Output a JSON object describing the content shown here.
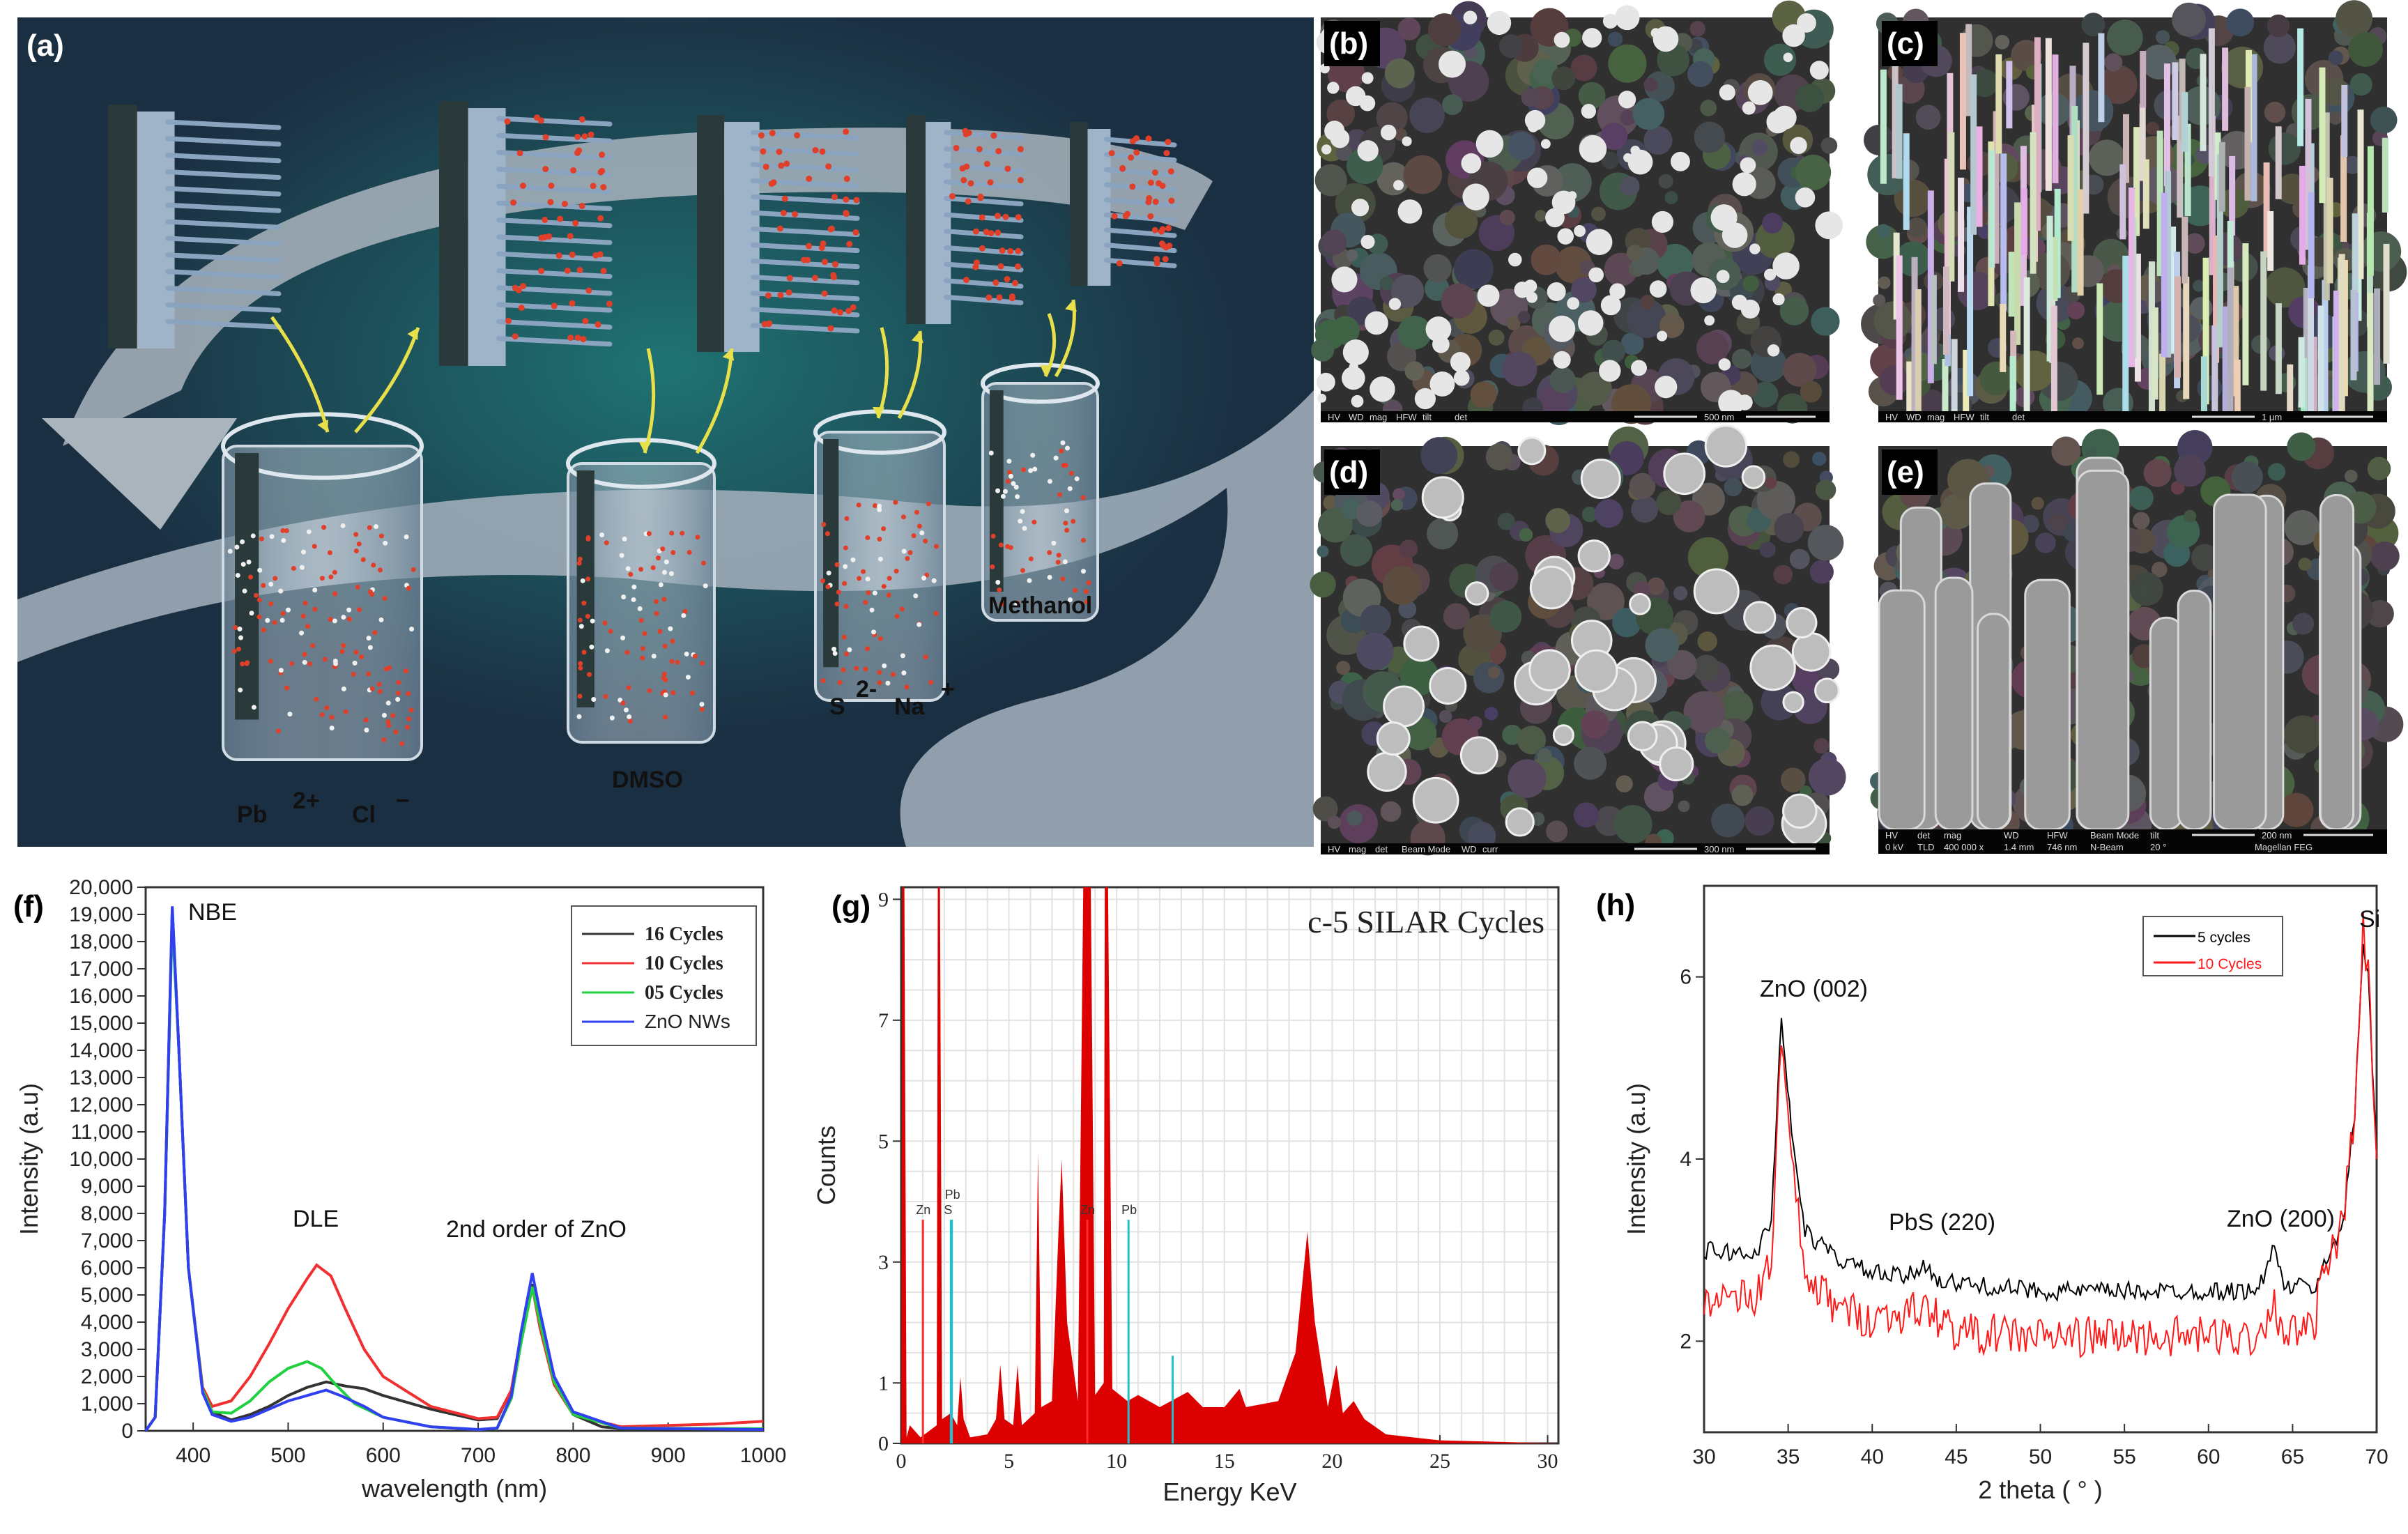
{
  "panel_labels": {
    "a": "(a)",
    "b": "(b)",
    "c": "(c)",
    "d": "(d)",
    "e": "(e)",
    "f": "(f)",
    "g": "(g)",
    "h": "(h)"
  },
  "schematic": {
    "colors": {
      "background_top": "#1b2f42",
      "glow": "#1f7373",
      "band": "#9aa8b4",
      "rods": "#8aa4c0",
      "dots": "#e0402a",
      "arrow": "#e8e04a"
    },
    "labels": {
      "pb": "Pb",
      "pb_charge": "2+",
      "cl": "Cl",
      "cl_charge": "−",
      "dmso": "DMSO",
      "s": "S",
      "s_charge": "2-",
      "na": "Na",
      "na_charge": "+",
      "methanol": "Methanol"
    }
  },
  "sem": {
    "b": {
      "bar_fields": [
        "HV",
        "WD",
        "mag",
        "HFW",
        "tilt",
        "det"
      ],
      "scale": "500 nm"
    },
    "c": {
      "bar_fields": [
        "HV",
        "WD",
        "mag",
        "HFW",
        "tilt",
        "det"
      ],
      "scale": "1 µm"
    },
    "d": {
      "bar_fields": [
        "HV",
        "mag",
        "det",
        "Beam Mode",
        "WD",
        "curr"
      ],
      "scale": "300 nm"
    },
    "e": {
      "bar_fields": [
        "HV",
        "det",
        "mag",
        "WD",
        "HFW",
        "Beam Mode",
        "tilt"
      ],
      "bar_values": [
        "0 kV",
        "TLD",
        "400 000 x",
        "1.4 mm",
        "746 nm",
        "N-Beam",
        "20 °"
      ],
      "scale": "200 nm",
      "instrument": "Magellan FEG"
    }
  },
  "chart_data": [
    {
      "panel": "f",
      "type": "line",
      "xlabel": "wavelength (nm)",
      "ylabel": "Intensity (a.u)",
      "xlim": [
        350,
        1000
      ],
      "ylim": [
        0,
        20000
      ],
      "x_ticks": [
        400,
        500,
        600,
        700,
        800,
        900,
        1000
      ],
      "x_tick_labels": [
        "400",
        "500",
        "600",
        "700",
        "800",
        "900",
        "1000"
      ],
      "y_ticks": [
        0,
        1000,
        2000,
        3000,
        4000,
        5000,
        6000,
        7000,
        8000,
        9000,
        10000,
        11000,
        12000,
        13000,
        14000,
        15000,
        16000,
        17000,
        18000,
        19000,
        20000
      ],
      "y_tick_labels": [
        "0",
        "1,000",
        "2,000",
        "3,000",
        "4,000",
        "5,000",
        "6,000",
        "7,000",
        "8,000",
        "9,000",
        "10,000",
        "11,000",
        "12,000",
        "13,000",
        "14,000",
        "15,000",
        "16,000",
        "17,000",
        "18,000",
        "19,000",
        "20,000"
      ],
      "grid": false,
      "legend": "top-right",
      "annotations": [
        "NBE",
        "DLE",
        "2nd order of ZnO"
      ],
      "series": [
        {
          "name": "16 Cycles",
          "color": "#333333",
          "points": [
            [
              350,
              0
            ],
            [
              360,
              500
            ],
            [
              370,
              8000
            ],
            [
              378,
              19200
            ],
            [
              385,
              14000
            ],
            [
              395,
              6000
            ],
            [
              410,
              1500
            ],
            [
              420,
              700
            ],
            [
              440,
              400
            ],
            [
              460,
              600
            ],
            [
              480,
              900
            ],
            [
              500,
              1300
            ],
            [
              520,
              1600
            ],
            [
              540,
              1800
            ],
            [
              560,
              1650
            ],
            [
              580,
              1550
            ],
            [
              600,
              1300
            ],
            [
              650,
              800
            ],
            [
              700,
              400
            ],
            [
              720,
              450
            ],
            [
              735,
              1500
            ],
            [
              745,
              3500
            ],
            [
              757,
              5400
            ],
            [
              765,
              4000
            ],
            [
              780,
              1800
            ],
            [
              800,
              600
            ],
            [
              830,
              150
            ],
            [
              860,
              50
            ],
            [
              1000,
              50
            ]
          ]
        },
        {
          "name": "10 Cycles",
          "color": "#f03030",
          "points": [
            [
              350,
              0
            ],
            [
              360,
              500
            ],
            [
              370,
              8000
            ],
            [
              378,
              19000
            ],
            [
              385,
              14000
            ],
            [
              395,
              6000
            ],
            [
              410,
              1600
            ],
            [
              420,
              900
            ],
            [
              440,
              1100
            ],
            [
              460,
              2000
            ],
            [
              480,
              3200
            ],
            [
              500,
              4500
            ],
            [
              520,
              5600
            ],
            [
              530,
              6100
            ],
            [
              545,
              5700
            ],
            [
              560,
              4500
            ],
            [
              580,
              3000
            ],
            [
              600,
              2000
            ],
            [
              650,
              900
            ],
            [
              700,
              450
            ],
            [
              720,
              500
            ],
            [
              735,
              1500
            ],
            [
              745,
              3500
            ],
            [
              757,
              5300
            ],
            [
              765,
              3800
            ],
            [
              780,
              1700
            ],
            [
              800,
              600
            ],
            [
              850,
              150
            ],
            [
              900,
              200
            ],
            [
              950,
              250
            ],
            [
              1000,
              350
            ]
          ]
        },
        {
          "name": "05 Cycles",
          "color": "#20d040",
          "points": [
            [
              350,
              0
            ],
            [
              360,
              500
            ],
            [
              370,
              8000
            ],
            [
              378,
              18800
            ],
            [
              385,
              14000
            ],
            [
              395,
              6000
            ],
            [
              410,
              1500
            ],
            [
              420,
              700
            ],
            [
              440,
              650
            ],
            [
              460,
              1100
            ],
            [
              480,
              1800
            ],
            [
              500,
              2300
            ],
            [
              520,
              2550
            ],
            [
              535,
              2300
            ],
            [
              550,
              1700
            ],
            [
              570,
              1000
            ],
            [
              600,
              500
            ],
            [
              650,
              150
            ],
            [
              700,
              50
            ],
            [
              720,
              100
            ],
            [
              735,
              1200
            ],
            [
              745,
              3200
            ],
            [
              757,
              5300
            ],
            [
              765,
              4000
            ],
            [
              780,
              1800
            ],
            [
              800,
              600
            ],
            [
              850,
              100
            ],
            [
              1000,
              80
            ]
          ]
        },
        {
          "name": "ZnO NWs",
          "color": "#3040f0",
          "points": [
            [
              350,
              0
            ],
            [
              360,
              500
            ],
            [
              370,
              8000
            ],
            [
              378,
              19300
            ],
            [
              385,
              14000
            ],
            [
              395,
              6000
            ],
            [
              410,
              1400
            ],
            [
              420,
              600
            ],
            [
              440,
              350
            ],
            [
              460,
              500
            ],
            [
              480,
              800
            ],
            [
              500,
              1100
            ],
            [
              520,
              1300
            ],
            [
              540,
              1500
            ],
            [
              555,
              1300
            ],
            [
              580,
              900
            ],
            [
              600,
              500
            ],
            [
              650,
              150
            ],
            [
              700,
              50
            ],
            [
              720,
              100
            ],
            [
              735,
              1300
            ],
            [
              745,
              3600
            ],
            [
              757,
              5800
            ],
            [
              765,
              4400
            ],
            [
              780,
              2000
            ],
            [
              800,
              700
            ],
            [
              850,
              100
            ],
            [
              1000,
              50
            ]
          ]
        }
      ]
    },
    {
      "panel": "g",
      "type": "area",
      "title": "c-5 SILAR Cycles",
      "xlabel": "Energy KeV",
      "ylabel": "Counts",
      "xlim": [
        0,
        30.5
      ],
      "ylim": [
        0,
        9.2
      ],
      "x_ticks": [
        0,
        5,
        10,
        15,
        20,
        25,
        30
      ],
      "x_tick_labels": [
        "0",
        "5",
        "10",
        "15",
        "20",
        "25",
        "30"
      ],
      "y_ticks": [
        0,
        1,
        3,
        5,
        7,
        9
      ],
      "y_tick_labels": [
        "0",
        "1",
        "3",
        "5",
        "7",
        "9"
      ],
      "grid": true,
      "fill_color": "#dd0000",
      "spectrum": [
        [
          0,
          0
        ],
        [
          0.05,
          9.2
        ],
        [
          0.15,
          9.2
        ],
        [
          0.25,
          0.1
        ],
        [
          0.4,
          0.3
        ],
        [
          0.9,
          0.1
        ],
        [
          1.65,
          0.3
        ],
        [
          1.7,
          9.2
        ],
        [
          1.8,
          9.2
        ],
        [
          1.9,
          0.4
        ],
        [
          2.3,
          0.5
        ],
        [
          2.6,
          0.3
        ],
        [
          2.75,
          1.1
        ],
        [
          2.9,
          0.4
        ],
        [
          3.2,
          0.1
        ],
        [
          4.0,
          0.15
        ],
        [
          4.4,
          0.4
        ],
        [
          4.6,
          1.3
        ],
        [
          4.8,
          0.4
        ],
        [
          5.2,
          0.3
        ],
        [
          5.4,
          1.3
        ],
        [
          5.6,
          0.3
        ],
        [
          6.2,
          0.5
        ],
        [
          6.35,
          4.8
        ],
        [
          6.5,
          0.6
        ],
        [
          7.0,
          0.7
        ],
        [
          7.3,
          3.5
        ],
        [
          7.45,
          4.7
        ],
        [
          7.7,
          2.0
        ],
        [
          8.2,
          0.7
        ],
        [
          8.45,
          9.2
        ],
        [
          8.8,
          9.2
        ],
        [
          9.0,
          0.8
        ],
        [
          9.4,
          1.0
        ],
        [
          9.45,
          9.2
        ],
        [
          9.6,
          9.2
        ],
        [
          9.8,
          0.9
        ],
        [
          10.5,
          0.7
        ],
        [
          11.0,
          0.8
        ],
        [
          12.0,
          0.6
        ],
        [
          13.3,
          0.85
        ],
        [
          14.0,
          0.6
        ],
        [
          15.0,
          0.6
        ],
        [
          15.7,
          0.9
        ],
        [
          16.0,
          0.6
        ],
        [
          17.5,
          0.7
        ],
        [
          18.3,
          1.5
        ],
        [
          18.85,
          3.5
        ],
        [
          19.2,
          2.0
        ],
        [
          19.8,
          0.6
        ],
        [
          20.2,
          1.3
        ],
        [
          20.5,
          0.5
        ],
        [
          21.0,
          0.7
        ],
        [
          21.5,
          0.4
        ],
        [
          22.5,
          0.15
        ],
        [
          25,
          0.05
        ],
        [
          30.5,
          0.0
        ],
        [
          30.5,
          0
        ]
      ],
      "markers": [
        {
          "label": "Zn",
          "energy": 1.01,
          "height": 3.7,
          "color": "#ff2a2a"
        },
        {
          "label": "Pb",
          "energy": 2.35,
          "height": 3.7,
          "color": "#20c0d0"
        },
        {
          "label": "S",
          "energy": 2.31,
          "height": 3.7,
          "color": "#20c0d0"
        },
        {
          "label": "Zn",
          "energy": 8.64,
          "height": 3.7,
          "color": "#ff2a2a"
        },
        {
          "label": "Pb",
          "energy": 10.55,
          "height": 3.7,
          "color": "#20c0d0"
        },
        {
          "label": "",
          "energy": 12.6,
          "height": 1.45,
          "color": "#20c0d0"
        }
      ]
    },
    {
      "panel": "h",
      "type": "line",
      "xlabel": "2 theta ( ° )",
      "ylabel": "Intensity (a.u)",
      "xlim": [
        30,
        70
      ],
      "ylim": [
        1,
        7
      ],
      "x_ticks": [
        30,
        35,
        40,
        45,
        50,
        55,
        60,
        65,
        70
      ],
      "x_tick_labels": [
        "30",
        "35",
        "40",
        "45",
        "50",
        "55",
        "60",
        "65",
        "70"
      ],
      "y_ticks": [
        2,
        4,
        6
      ],
      "y_tick_labels": [
        "2",
        "4",
        "6"
      ],
      "grid": false,
      "legend": "top-right",
      "annotations": [
        "ZnO (002)",
        "PbS (220)",
        "ZnO (200)",
        "Si"
      ],
      "series": [
        {
          "name": "5 cycles",
          "color": "#000000",
          "points": [
            [
              30,
              3.0
            ],
            [
              33,
              2.95
            ],
            [
              34,
              3.3
            ],
            [
              34.6,
              5.6
            ],
            [
              35.2,
              4.3
            ],
            [
              36,
              3.2
            ],
            [
              38,
              2.9
            ],
            [
              40,
              2.75
            ],
            [
              42,
              2.7
            ],
            [
              43.3,
              2.85
            ],
            [
              44,
              2.65
            ],
            [
              50,
              2.55
            ],
            [
              60,
              2.55
            ],
            [
              63,
              2.55
            ],
            [
              63.8,
              3.05
            ],
            [
              64.5,
              2.6
            ],
            [
              66.5,
              2.6
            ],
            [
              67,
              2.9
            ],
            [
              68,
              3.3
            ],
            [
              68.7,
              4.5
            ],
            [
              69.2,
              6.4
            ],
            [
              69.5,
              6.0
            ],
            [
              70,
              4.0
            ]
          ]
        },
        {
          "name": "10 Cycles",
          "color": "#ff1a1a",
          "points": [
            [
              30,
              2.5
            ],
            [
              33,
              2.45
            ],
            [
              34,
              2.9
            ],
            [
              34.6,
              5.3
            ],
            [
              35.2,
              4.0
            ],
            [
              36,
              2.7
            ],
            [
              38,
              2.35
            ],
            [
              40,
              2.25
            ],
            [
              43.3,
              2.35
            ],
            [
              45,
              2.1
            ],
            [
              50,
              2.05
            ],
            [
              60,
              2.05
            ],
            [
              63,
              2.05
            ],
            [
              63.8,
              2.45
            ],
            [
              64.5,
              2.1
            ],
            [
              66.3,
              2.1
            ],
            [
              66.5,
              2.5
            ],
            [
              67,
              2.75
            ],
            [
              68,
              3.3
            ],
            [
              68.7,
              4.5
            ],
            [
              69.2,
              6.5
            ],
            [
              69.5,
              6.0
            ],
            [
              70,
              4.0
            ]
          ]
        }
      ]
    }
  ]
}
